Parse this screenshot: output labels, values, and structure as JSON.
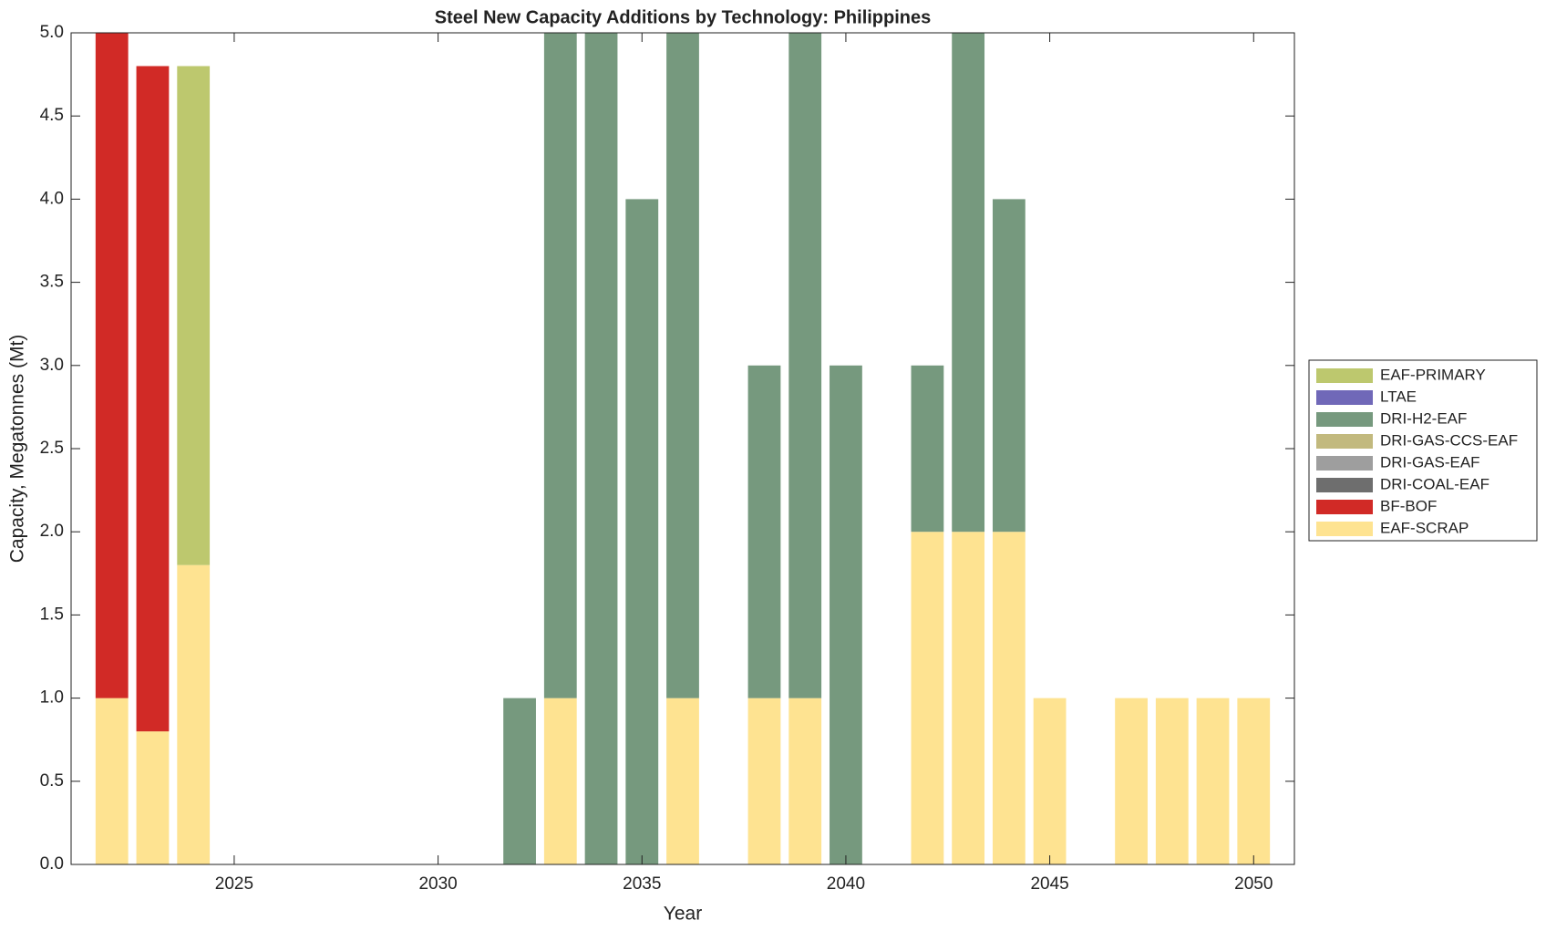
{
  "chart_data": {
    "type": "stacked_bar",
    "title": "Steel New Capacity Additions by Technology: Philippines",
    "xlabel": "Year",
    "ylabel": "Capacity, Megatonnes (Mt)",
    "x": [
      2022,
      2023,
      2024,
      2025,
      2026,
      2027,
      2028,
      2029,
      2030,
      2031,
      2032,
      2033,
      2034,
      2035,
      2036,
      2037,
      2038,
      2039,
      2040,
      2041,
      2042,
      2043,
      2044,
      2045,
      2046,
      2047,
      2048,
      2049,
      2050
    ],
    "series": [
      {
        "name": "EAF-SCRAP",
        "color": "#fee391",
        "values": [
          1,
          0.8,
          1.8,
          0,
          0,
          0,
          0,
          0,
          0,
          0,
          0,
          1,
          0,
          0,
          1,
          0,
          1,
          1,
          0,
          0,
          2,
          2,
          2,
          1,
          0,
          1,
          1,
          1,
          1
        ]
      },
      {
        "name": "BF-BOF",
        "color": "#d12a26",
        "values": [
          4,
          4,
          0,
          0,
          0,
          0,
          0,
          0,
          0,
          0,
          0,
          0,
          0,
          0,
          0,
          0,
          0,
          0,
          0,
          0,
          0,
          0,
          0,
          0,
          0,
          0,
          0,
          0,
          0
        ]
      },
      {
        "name": "DRI-COAL-EAF",
        "color": "#6e6e6e",
        "values": [
          0,
          0,
          0,
          0,
          0,
          0,
          0,
          0,
          0,
          0,
          0,
          0,
          0,
          0,
          0,
          0,
          0,
          0,
          0,
          0,
          0,
          0,
          0,
          0,
          0,
          0,
          0,
          0,
          0
        ]
      },
      {
        "name": "DRI-GAS-EAF",
        "color": "#9e9e9e",
        "values": [
          0,
          0,
          0,
          0,
          0,
          0,
          0,
          0,
          0,
          0,
          0,
          0,
          0,
          0,
          0,
          0,
          0,
          0,
          0,
          0,
          0,
          0,
          0,
          0,
          0,
          0,
          0,
          0,
          0
        ]
      },
      {
        "name": "DRI-GAS-CCS-EAF",
        "color": "#c2b97e",
        "values": [
          0,
          0,
          0,
          0,
          0,
          0,
          0,
          0,
          0,
          0,
          0,
          0,
          0,
          0,
          0,
          0,
          0,
          0,
          0,
          0,
          0,
          0,
          0,
          0,
          0,
          0,
          0,
          0,
          0
        ]
      },
      {
        "name": "DRI-H2-EAF",
        "color": "#76997e",
        "values": [
          0,
          0,
          0,
          0,
          0,
          0,
          0,
          0,
          0,
          0,
          1,
          4,
          5,
          4,
          4,
          0,
          2,
          4,
          3,
          0,
          1,
          3,
          2,
          0,
          0,
          0,
          0,
          0,
          0
        ]
      },
      {
        "name": "LTAE",
        "color": "#7068b8",
        "values": [
          0,
          0,
          0,
          0,
          0,
          0,
          0,
          0,
          0,
          0,
          0,
          0,
          0,
          0,
          0,
          0,
          0,
          0,
          0,
          0,
          0,
          0,
          0,
          0,
          0,
          0,
          0,
          0,
          0
        ]
      },
      {
        "name": "EAF-PRIMARY",
        "color": "#bdc86e",
        "values": [
          0,
          0,
          3,
          0,
          0,
          0,
          0,
          0,
          0,
          0,
          0,
          0,
          0,
          0,
          0,
          0,
          0,
          0,
          0,
          0,
          0,
          0,
          0,
          0,
          0,
          0,
          0,
          0,
          0
        ]
      }
    ],
    "xlim": [
      2021,
      2051
    ],
    "xticks": [
      2025,
      2030,
      2035,
      2040,
      2045,
      2050
    ],
    "ylim": [
      0,
      5
    ],
    "yticks": [
      {
        "value": 0,
        "label": "0.0"
      },
      0.5,
      {
        "value": 1,
        "label": "1.0"
      },
      1.5,
      {
        "value": 2,
        "label": "2.0"
      },
      2.5,
      {
        "value": 3,
        "label": "3.0"
      },
      3.5,
      {
        "value": 4,
        "label": "4.0"
      },
      4.5,
      {
        "value": 5,
        "label": "5.0"
      }
    ],
    "bar_width": 0.8,
    "legend": "right"
  }
}
